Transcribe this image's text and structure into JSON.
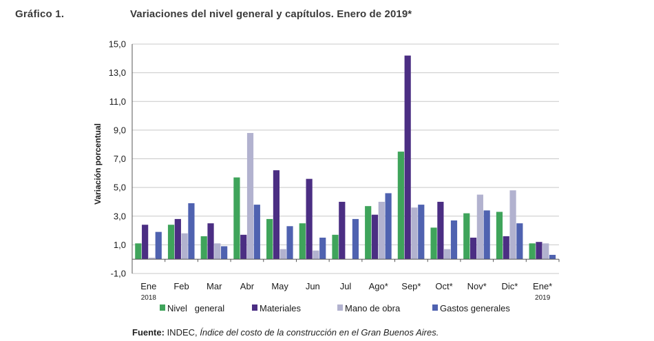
{
  "header": {
    "label": "Gráfico 1.",
    "title": "Variaciones del nivel general y capítulos. Enero de 2019*"
  },
  "colors": {
    "nivel_general": "#3fa45b",
    "materiales": "#4b2e83",
    "mano_de_obra": "#b2b2cf",
    "gastos_generales": "#4f62b0",
    "grid": "#c8c8c8",
    "axis": "#555555"
  },
  "chart_data": {
    "type": "bar",
    "title": "Variaciones del nivel general y capítulos. Enero de 2019*",
    "ylabel": "Variación porcentual",
    "xlabel": "",
    "ylim": [
      -1.0,
      15.0
    ],
    "yticks": [
      -1.0,
      1.0,
      3.0,
      5.0,
      7.0,
      9.0,
      11.0,
      13.0,
      15.0
    ],
    "ytick_labels": [
      "-1,0",
      "1,0",
      "3,0",
      "5,0",
      "7,0",
      "9,0",
      "11,0",
      "13,0",
      "15,0"
    ],
    "grid": true,
    "legend_position": "bottom",
    "categories": [
      "Ene",
      "Feb",
      "Mar",
      "Abr",
      "May",
      "Jun",
      "Jul",
      "Ago*",
      "Sep*",
      "Oct*",
      "Nov*",
      "Dic*",
      "Ene*"
    ],
    "category_sublabels": [
      "2018",
      "",
      "",
      "",
      "",
      "",
      "",
      "",
      "",
      "",
      "",
      "",
      "2019"
    ],
    "series": [
      {
        "name": "Nivel general",
        "legend_label": "Nivel   general",
        "color_key": "nivel_general",
        "values": [
          1.1,
          2.4,
          1.6,
          5.7,
          2.8,
          2.5,
          1.7,
          3.7,
          7.5,
          2.2,
          3.2,
          3.3,
          1.1
        ]
      },
      {
        "name": "Materiales",
        "legend_label": "Materiales",
        "color_key": "materiales",
        "values": [
          2.4,
          2.8,
          2.5,
          1.7,
          6.2,
          5.6,
          4.0,
          3.1,
          14.2,
          4.0,
          1.5,
          1.6,
          1.2
        ]
      },
      {
        "name": "Mano de obra",
        "legend_label": "Mano de obra",
        "color_key": "mano_de_obra",
        "values": [
          0.1,
          1.8,
          1.1,
          8.8,
          0.7,
          0.6,
          0.0,
          4.0,
          3.6,
          0.7,
          4.5,
          4.8,
          1.1
        ]
      },
      {
        "name": "Gastos generales",
        "legend_label": "Gastos generales",
        "color_key": "gastos_generales",
        "values": [
          1.9,
          3.9,
          0.9,
          3.8,
          2.3,
          1.5,
          2.8,
          4.6,
          3.8,
          2.7,
          3.4,
          2.5,
          0.3
        ]
      }
    ]
  },
  "source": {
    "label": "Fuente:",
    "agency": " INDEC, ",
    "publication": "Índice del costo de la construcción en el Gran Buenos Aires."
  }
}
